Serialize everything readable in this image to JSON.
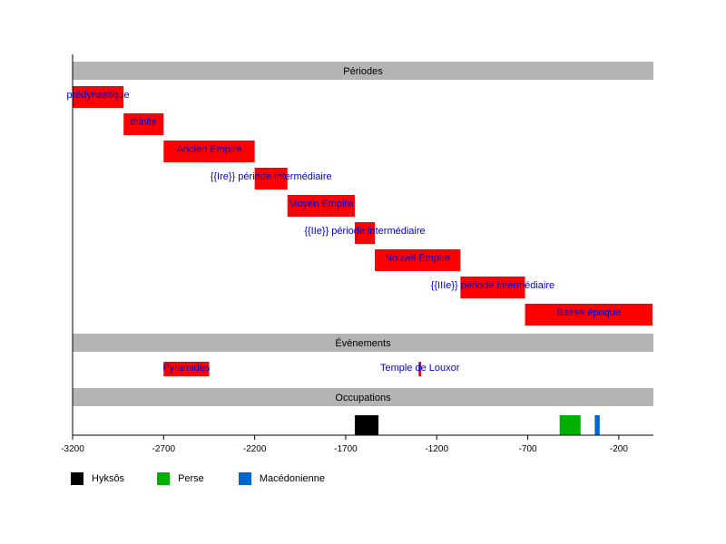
{
  "chart_data": {
    "type": "timeline",
    "xlim": [
      -3200,
      -10
    ],
    "ticks": [
      -3200,
      -2700,
      -2200,
      -1700,
      -1200,
      -700,
      -200
    ],
    "sections": [
      {
        "title": "Périodes",
        "items": [
          {
            "label": "prédynastique",
            "start": -3200,
            "end": -2920,
            "color": "#ff0000"
          },
          {
            "label": "thinite",
            "start": -2920,
            "end": -2700,
            "color": "#ff0000"
          },
          {
            "label": "Ancien Empire",
            "start": -2700,
            "end": -2200,
            "color": "#ff0000"
          },
          {
            "label": "{{Ire}} période intermédiaire",
            "start": -2200,
            "end": -2020,
            "color": "#ff0000"
          },
          {
            "label": "Moyen Empire",
            "start": -2020,
            "end": -1650,
            "color": "#ff0000"
          },
          {
            "label": "{{IIe}} période intermédiaire",
            "start": -1650,
            "end": -1540,
            "color": "#ff0000"
          },
          {
            "label": "Nouvel Empire",
            "start": -1540,
            "end": -1070,
            "color": "#ff0000"
          },
          {
            "label": "{{IIIe}} période intermédiaire",
            "start": -1070,
            "end": -715,
            "color": "#ff0000"
          },
          {
            "label": "Basse époque",
            "start": -715,
            "end": -15,
            "color": "#ff0000"
          }
        ]
      },
      {
        "title": "Évènements",
        "items": [
          {
            "label": "Pyramides",
            "start": -2700,
            "end": -2450,
            "color": "#ff0000"
          },
          {
            "label": "Temple de Louxor",
            "start": -1300,
            "end": -1285,
            "color": "#ff0000"
          }
        ]
      },
      {
        "title": "Occupations",
        "items": [
          {
            "label": "Hyksôs",
            "start": -1650,
            "end": -1520,
            "color": "#000000"
          },
          {
            "label": "Perse",
            "start": -525,
            "end": -410,
            "color": "#00b000"
          },
          {
            "label": "Macédonienne",
            "start": -332,
            "end": -305,
            "color": "#0066cc"
          }
        ]
      }
    ],
    "legend": [
      {
        "label": "Hyksôs",
        "color": "#000000"
      },
      {
        "label": "Perse",
        "color": "#00b000"
      },
      {
        "label": "Macédonienne",
        "color": "#0066cc"
      }
    ]
  }
}
